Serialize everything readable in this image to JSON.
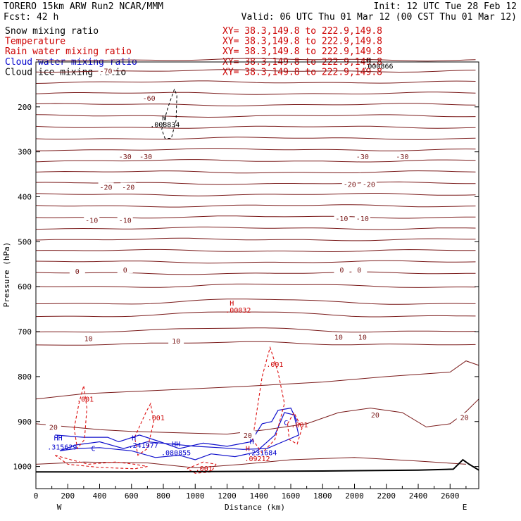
{
  "header": {
    "line1_left": "TORERO  15km ARW   Run2    NCAR/MMM",
    "line1_right": "Init: 12 UTC Tue 28 Feb 12",
    "line2_left": "Fcst:   42 h",
    "line2_right": "Valid: 06 UTC Thu 01 Mar 12 (00 CST Thu 01 Mar 12)",
    "fields": [
      {
        "name": "Snow mixing ratio",
        "range": "XY=  38.3,149.8 to 222.9,149.8",
        "color": "#000000"
      },
      {
        "name": "Temperature",
        "range": "XY=  38.3,149.8 to 222.9,149.8",
        "color": "#cc0000"
      },
      {
        "name": "Rain water mixing ratio",
        "range": "XY=  38.3,149.8 to 222.9,149.8",
        "color": "#cc0000"
      },
      {
        "name": "Cloud water mixing ratio",
        "range": "XY=  38.3,149.8 to 222.9,149.8",
        "color": "#0000cc"
      },
      {
        "name": "Cloud ice mixing ratio",
        "range": "XY=  38.3,149.8 to 222.9,149.8",
        "color": "#000000"
      }
    ]
  },
  "chart_data": {
    "type": "line",
    "xlabel": "Distance (km)",
    "ylabel": "Pressure (hPa)",
    "xlim": [
      0,
      2780
    ],
    "ylim": [
      1050,
      80
    ],
    "x_ticks": [
      0,
      200,
      400,
      600,
      800,
      1000,
      1200,
      1400,
      1600,
      1800,
      2000,
      2200,
      2400,
      2600
    ],
    "y_ticks": [
      200,
      300,
      400,
      500,
      600,
      700,
      800,
      900,
      1000
    ],
    "x_ends": {
      "left": "W",
      "right": "E"
    },
    "colors": {
      "temperature": "#7a1a1a",
      "zero_isotherm": "#6b0000",
      "rain": "#dd1111",
      "cloud_water": "#1111cc",
      "snow": "#000000",
      "terrain": "#000000",
      "label_purple": "#6600aa"
    },
    "isotherm_labels": [
      {
        "text": "-70",
        "x": 440,
        "p": 120
      },
      {
        "text": "-60",
        "x": 710,
        "p": 180
      },
      {
        "text": "-30",
        "x": 560,
        "p": 310
      },
      {
        "text": "-30",
        "x": 690,
        "p": 310
      },
      {
        "text": "-30",
        "x": 2050,
        "p": 310
      },
      {
        "text": "-30",
        "x": 2300,
        "p": 310
      },
      {
        "text": "-20",
        "x": 440,
        "p": 378
      },
      {
        "text": "-20",
        "x": 580,
        "p": 378
      },
      {
        "text": "-20",
        "x": 1970,
        "p": 372
      },
      {
        "text": "-20",
        "x": 2090,
        "p": 372
      },
      {
        "text": "-10",
        "x": 350,
        "p": 452
      },
      {
        "text": "-10",
        "x": 560,
        "p": 452
      },
      {
        "text": "-10",
        "x": 1920,
        "p": 448
      },
      {
        "text": "-10",
        "x": 2050,
        "p": 448
      },
      {
        "text": "0",
        "x": 260,
        "p": 565
      },
      {
        "text": "0",
        "x": 560,
        "p": 562
      },
      {
        "text": "0",
        "x": 1920,
        "p": 562
      },
      {
        "text": "0",
        "x": 2030,
        "p": 562
      },
      {
        "text": "10",
        "x": 330,
        "p": 715
      },
      {
        "text": "10",
        "x": 880,
        "p": 720
      },
      {
        "text": "10",
        "x": 1900,
        "p": 712
      },
      {
        "text": "10",
        "x": 2050,
        "p": 712
      },
      {
        "text": "20",
        "x": 110,
        "p": 912
      },
      {
        "text": "20",
        "x": 1330,
        "p": 930
      },
      {
        "text": "20",
        "x": 2130,
        "p": 885
      },
      {
        "text": "20",
        "x": 2690,
        "p": 890
      }
    ],
    "extremum_labels": [
      {
        "text": "H",
        "x": 805,
        "p": 230,
        "color": "#000000"
      },
      {
        "text": ".008834",
        "x": 810,
        "p": 245,
        "color": "#000000"
      },
      {
        "text": "H",
        "x": 2090,
        "p": 102,
        "color": "#000000"
      },
      {
        "text": ".000866",
        "x": 2150,
        "p": 115,
        "color": "#000000"
      },
      {
        "text": "H",
        "x": 1230,
        "p": 642,
        "color": "#cc0000"
      },
      {
        "text": ".00032",
        "x": 1270,
        "p": 658,
        "color": "#cc0000"
      },
      {
        "text": ".001",
        "x": 310,
        "p": 856,
        "color": "#cc0000"
      },
      {
        "text": ".001",
        "x": 755,
        "p": 897,
        "color": "#cc0000"
      },
      {
        "text": ".001",
        "x": 1500,
        "p": 778,
        "color": "#cc0000"
      },
      {
        "text": ".001",
        "x": 1655,
        "p": 913,
        "color": "#cc0000"
      },
      {
        "text": ".001",
        "x": 1055,
        "p": 1010,
        "color": "#cc0000"
      },
      {
        "text": "HH",
        "x": 140,
        "p": 942,
        "color": "#0000cc"
      },
      {
        "text": ".315629",
        "x": 165,
        "p": 962,
        "color": "#0000cc"
      },
      {
        "text": "H",
        "x": 615,
        "p": 942,
        "color": "#0000cc"
      },
      {
        "text": ".241977",
        "x": 675,
        "p": 958,
        "color": "#0000cc"
      },
      {
        "text": "HH",
        "x": 880,
        "p": 955,
        "color": "#0000cc"
      },
      {
        "text": ".080855",
        "x": 880,
        "p": 975,
        "color": "#0000cc"
      },
      {
        "text": "H",
        "x": 1355,
        "p": 950,
        "color": "#0000cc"
      },
      {
        "text": "H",
        "x": 1330,
        "p": 965,
        "color": "#cc0000"
      },
      {
        "text": ".231684",
        "x": 1420,
        "p": 975,
        "color": "#0000cc"
      },
      {
        "text": ".09212",
        "x": 1390,
        "p": 988,
        "color": "#cc0000"
      },
      {
        "text": "C",
        "x": 360,
        "p": 965,
        "color": "#0000cc"
      },
      {
        "text": "C",
        "x": 1570,
        "p": 908,
        "color": "#0000cc"
      }
    ]
  }
}
